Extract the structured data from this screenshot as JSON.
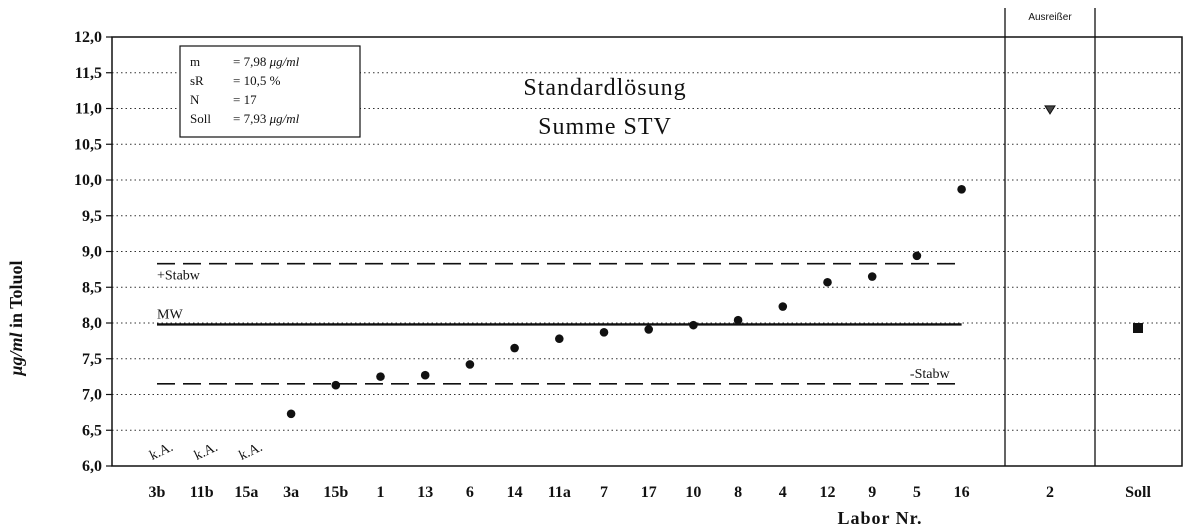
{
  "chart_data": {
    "type": "scatter",
    "title": "Standardlösung",
    "subtitle": "Summe STV",
    "ylabel_parts": [
      "μg/ml",
      " in Toluol"
    ],
    "xlabel": "Labor Nr.",
    "ylim": [
      6.0,
      12.0
    ],
    "yticks": [
      "6,0",
      "6,5",
      "7,0",
      "7,5",
      "8,0",
      "8,5",
      "9,0",
      "9,5",
      "10,0",
      "10,5",
      "11,0",
      "11,5",
      "12,0"
    ],
    "grid": "horizontal dotted",
    "categories": [
      "3b",
      "11b",
      "15a",
      "3a",
      "15b",
      "1",
      "13",
      "6",
      "14",
      "11a",
      "7",
      "17",
      "10",
      "8",
      "4",
      "12",
      "9",
      "5",
      "16"
    ],
    "values": [
      null,
      null,
      null,
      6.73,
      7.13,
      7.25,
      7.27,
      7.42,
      7.65,
      7.78,
      7.87,
      7.91,
      7.97,
      8.04,
      8.23,
      8.57,
      8.65,
      8.94,
      9.87
    ],
    "missing_label": "k.A.",
    "missing_categories": [
      "3b",
      "11b",
      "15a"
    ],
    "reference_lines": [
      {
        "label": "+Stabw",
        "value": 8.83,
        "style": "dashed"
      },
      {
        "label": "MW",
        "value": 7.98,
        "style": "solid"
      },
      {
        "label": "-Stabw",
        "value": 7.15,
        "style": "dashed"
      }
    ],
    "outlier_panel": {
      "header": "Ausreißer",
      "category": "2",
      "value": 10.98,
      "marker": "triangle-down"
    },
    "target_panel": {
      "category": "Soll",
      "value": 7.93,
      "marker": "square"
    },
    "stats_box": [
      {
        "key": "m",
        "value": "= 7,98 ",
        "unit": "μg/ml"
      },
      {
        "key": "sR",
        "value": "= 10,5 %",
        "unit": ""
      },
      {
        "key": "N",
        "value": "= 17",
        "unit": ""
      },
      {
        "key": "Soll",
        "value": "= 7,93 ",
        "unit": "μg/ml"
      }
    ]
  }
}
